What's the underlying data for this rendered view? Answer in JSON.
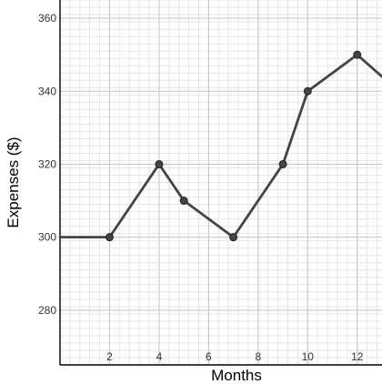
{
  "chart_data": {
    "type": "line",
    "title": "",
    "xlabel": "Months",
    "ylabel": "Expenses ($)",
    "xlim": [
      0,
      13
    ],
    "ylim": [
      265,
      365
    ],
    "x_ticks": [
      2,
      4,
      6,
      8,
      10,
      12
    ],
    "y_ticks": [
      280,
      300,
      320,
      340,
      360
    ],
    "grid": true,
    "series": [
      {
        "x": [
          0,
          2,
          4,
          5,
          7,
          9,
          10,
          12,
          13
        ],
        "y": [
          300,
          300,
          320,
          310,
          300,
          320,
          340,
          350,
          344
        ],
        "markers": [
          false,
          true,
          true,
          true,
          true,
          true,
          true,
          true,
          false
        ]
      }
    ],
    "line_color": "#444444"
  }
}
